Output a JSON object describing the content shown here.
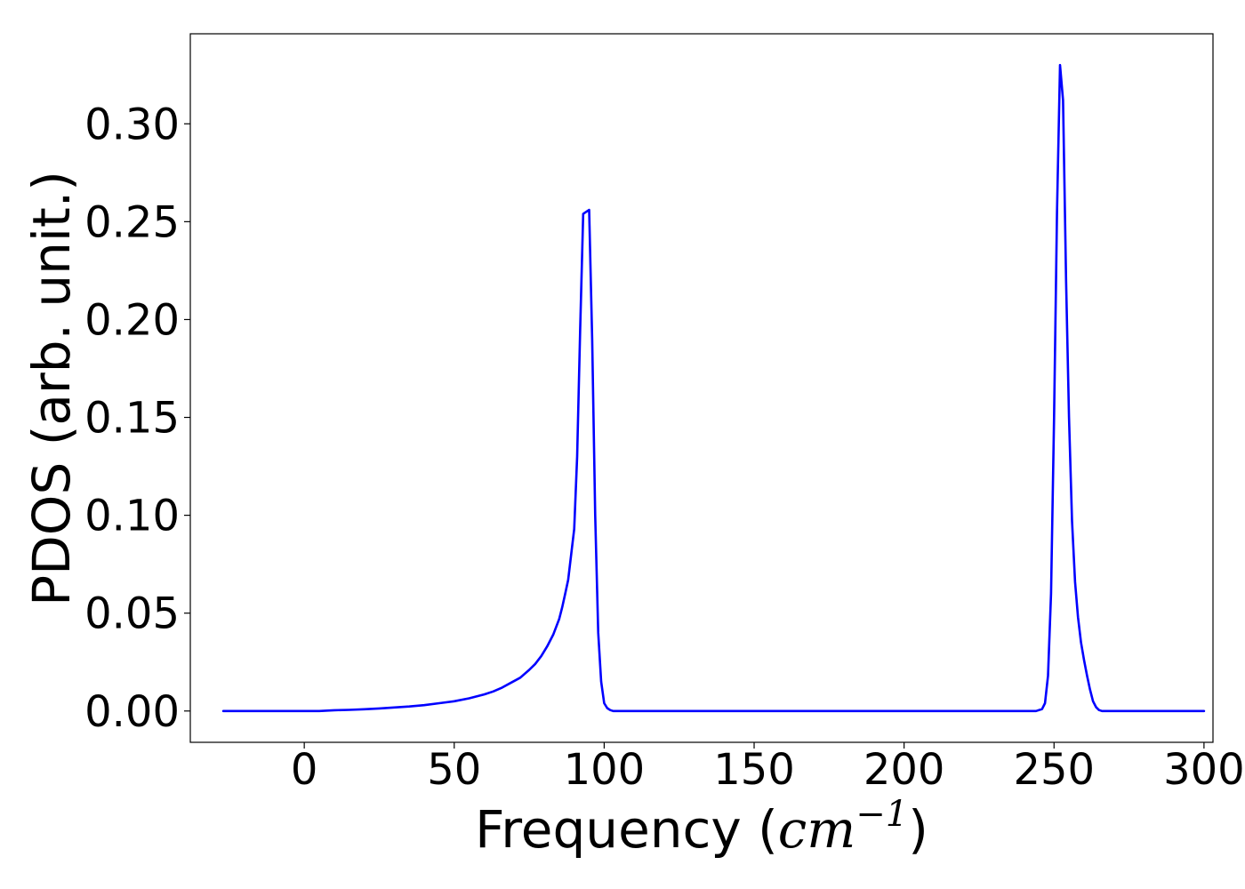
{
  "chart_data": {
    "type": "line",
    "title": "",
    "xlabel": "Frequency (cm⁻¹)",
    "xlabel_parts": {
      "prefix": "Frequency (",
      "math": "cm",
      "exponent": "−1",
      "suffix": ")"
    },
    "ylabel": "PDOS (arb. unit.)",
    "xlim": [
      -38,
      303
    ],
    "ylim": [
      -0.016,
      0.346
    ],
    "xticks": [
      0,
      50,
      100,
      150,
      200,
      250,
      300
    ],
    "xtick_labels": [
      "0",
      "50",
      "100",
      "150",
      "200",
      "250",
      "300"
    ],
    "yticks": [
      0.0,
      0.05,
      0.1,
      0.15,
      0.2,
      0.25,
      0.3
    ],
    "ytick_labels": [
      "0.00",
      "0.05",
      "0.10",
      "0.15",
      "0.20",
      "0.25",
      "0.30"
    ],
    "grid": false,
    "legend": "none",
    "series": [
      {
        "color": "#0000ff",
        "x": [
          -27,
          -20,
          -10,
          0,
          5,
          10,
          15,
          20,
          25,
          30,
          35,
          40,
          45,
          50,
          55,
          60,
          63,
          66,
          69,
          72,
          75,
          77,
          79,
          81,
          83,
          85,
          86,
          87,
          88,
          89,
          90,
          91,
          92,
          93,
          95,
          96,
          97,
          98,
          99,
          100,
          101,
          102,
          103,
          104,
          106,
          110,
          120,
          150,
          200,
          230,
          244,
          246,
          247,
          248,
          249,
          250,
          251,
          252,
          253,
          254,
          255,
          256,
          257,
          258,
          259,
          260,
          261,
          262,
          263,
          264,
          265,
          266,
          267,
          268,
          270,
          272,
          274,
          276,
          278,
          280,
          285,
          300
        ],
        "y": [
          0.0,
          0.0,
          0.0,
          0.0,
          0.0,
          0.0004,
          0.0006,
          0.0009,
          0.0013,
          0.0018,
          0.0023,
          0.003,
          0.004,
          0.005,
          0.0065,
          0.0085,
          0.01,
          0.012,
          0.0145,
          0.017,
          0.021,
          0.024,
          0.028,
          0.033,
          0.039,
          0.047,
          0.053,
          0.06,
          0.067,
          0.08,
          0.093,
          0.13,
          0.195,
          0.254,
          0.256,
          0.19,
          0.1,
          0.04,
          0.015,
          0.004,
          0.0015,
          0.0005,
          0.0,
          0.0,
          0.0,
          0.0,
          0.0,
          0.0,
          0.0,
          0.0,
          0.0,
          0.001,
          0.004,
          0.018,
          0.06,
          0.15,
          0.255,
          0.33,
          0.312,
          0.22,
          0.15,
          0.097,
          0.066,
          0.048,
          0.035,
          0.026,
          0.018,
          0.011,
          0.005,
          0.002,
          0.0005,
          0.0,
          0.0,
          0.0,
          0.0,
          0.0,
          0.0,
          0.0,
          0.0,
          0.0,
          0.0,
          0.0
        ]
      }
    ]
  }
}
